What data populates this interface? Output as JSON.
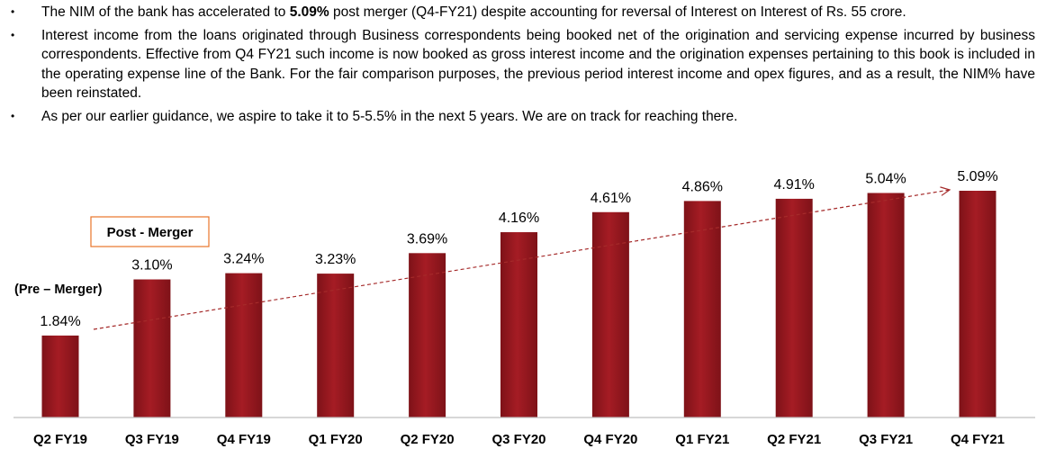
{
  "bullets": [
    {
      "pre": "The NIM of the bank  has accelerated to ",
      "bold": "5.09%",
      "post": " post merger (Q4-FY21) despite accounting for reversal of Interest on Interest of Rs. 55 crore."
    },
    {
      "pre": "Interest income from the loans originated through Business correspondents being booked net of the origination and servicing expense incurred by business correspondents. Effective from Q4 FY21 such income is now booked as gross interest income and the origination expenses pertaining to this book is included in the operating expense line of the Bank. For the fair comparison purposes, the previous period interest income and opex figures, and as a result, the NIM% have been reinstated.",
      "bold": "",
      "post": ""
    },
    {
      "pre": "As per our earlier guidance, we aspire to take it to 5-5.5% in the next 5 years. We are on track for reaching there.",
      "bold": "",
      "post": ""
    }
  ],
  "bullet_symbol": "•",
  "labels": {
    "pre_merger": "(Pre – Merger)",
    "post_merger": "Post - Merger"
  },
  "colors": {
    "bar": "#a51c24",
    "bar_dark": "#7e1218",
    "trend": "#a52a2a",
    "box_border": "#e8742a"
  },
  "chart_data": {
    "type": "bar",
    "categories": [
      "Q2 FY19",
      "Q3 FY19",
      "Q4 FY19",
      "Q1 FY20",
      "Q2 FY20",
      "Q3 FY20",
      "Q4 FY20",
      "Q1 FY21",
      "Q2 FY21",
      "Q3 FY21",
      "Q4 FY21"
    ],
    "values": [
      1.84,
      3.1,
      3.24,
      3.23,
      3.69,
      4.16,
      4.61,
      4.86,
      4.91,
      5.04,
      5.09
    ],
    "data_labels": [
      "1.84%",
      "3.10%",
      "3.24%",
      "3.23%",
      "3.69%",
      "4.16%",
      "4.61%",
      "4.86%",
      "4.91%",
      "5.04%",
      "5.09%"
    ],
    "title": "",
    "xlabel": "",
    "ylabel": "",
    "ylim": [
      0,
      5.5
    ],
    "grid": false,
    "legend": "none",
    "trendline": "dashed arrow"
  }
}
